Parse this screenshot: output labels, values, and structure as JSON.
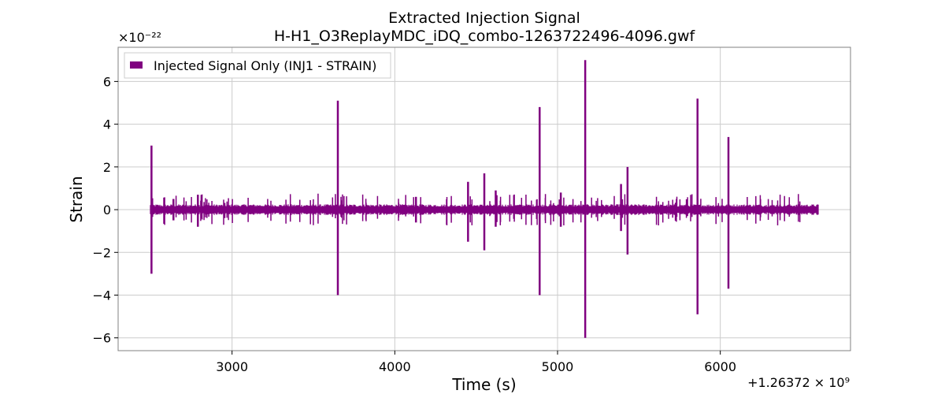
{
  "chart_data": {
    "type": "line",
    "title": "Extracted Injection Signal",
    "subtitle": "H-H1_O3ReplayMDC_iDQ_combo-1263722496-4096.gwf",
    "xlabel": "Time (s)",
    "ylabel": "Strain",
    "y_exponent_label": "×10⁻²²",
    "x_offset_label": "+1.26372 × 10⁹",
    "xlim": [
      2300,
      6800
    ],
    "ylim": [
      -6.6,
      7.6
    ],
    "x_ticks": [
      3000,
      4000,
      5000,
      6000
    ],
    "x_tick_labels": [
      "3000",
      "4000",
      "5000",
      "6000"
    ],
    "y_ticks": [
      -6,
      -4,
      -2,
      0,
      2,
      4,
      6
    ],
    "y_tick_labels": [
      "−6",
      "−4",
      "−2",
      "0",
      "2",
      "4",
      "6"
    ],
    "grid": true,
    "legend_position": "top-left",
    "series": [
      {
        "name": "Injected Signal Only (INJ1 - STRAIN)",
        "color": "#800080",
        "baseline_x_range": [
          2500,
          6600
        ],
        "baseline_amplitude": 0.25,
        "spikes": [
          {
            "x": 2505,
            "ymax": 3.0,
            "ymin": -3.0
          },
          {
            "x": 2640,
            "ymax": 0.5,
            "ymin": -0.5
          },
          {
            "x": 2790,
            "ymax": 0.7,
            "ymin": -0.8
          },
          {
            "x": 3650,
            "ymax": 5.1,
            "ymin": -4.0
          },
          {
            "x": 4130,
            "ymax": 0.6,
            "ymin": -0.6
          },
          {
            "x": 4450,
            "ymax": 1.3,
            "ymin": -1.5
          },
          {
            "x": 4550,
            "ymax": 1.7,
            "ymin": -1.9
          },
          {
            "x": 4620,
            "ymax": 0.9,
            "ymin": -0.8
          },
          {
            "x": 4890,
            "ymax": 4.8,
            "ymin": -4.0
          },
          {
            "x": 5020,
            "ymax": 0.8,
            "ymin": -0.8
          },
          {
            "x": 5170,
            "ymax": 7.0,
            "ymin": -6.0
          },
          {
            "x": 5390,
            "ymax": 1.2,
            "ymin": -1.0
          },
          {
            "x": 5430,
            "ymax": 2.0,
            "ymin": -2.1
          },
          {
            "x": 5860,
            "ymax": 5.2,
            "ymin": -4.9
          },
          {
            "x": 6050,
            "ymax": 3.4,
            "ymin": -3.7
          }
        ]
      }
    ]
  }
}
